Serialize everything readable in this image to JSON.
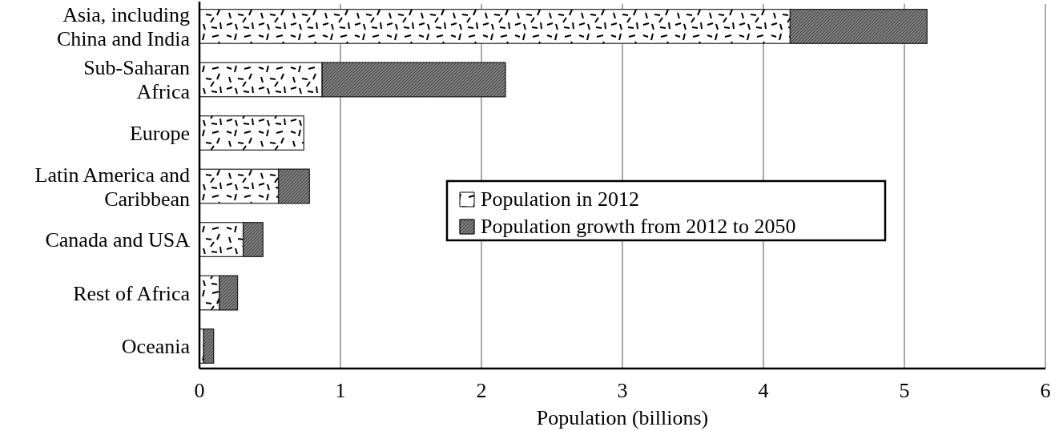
{
  "chart_data": {
    "type": "bar",
    "orientation": "horizontal",
    "stacked": true,
    "categories": [
      "Asia, including China and India",
      "Sub-Saharan Africa",
      "Europe",
      "Latin America and Caribbean",
      "Canada and USA",
      "Rest of Africa",
      "Oceania"
    ],
    "series": [
      {
        "name": "Population in 2012",
        "color": "#ffffff",
        "values": [
          4.19,
          0.87,
          0.74,
          0.56,
          0.31,
          0.14,
          0.03
        ]
      },
      {
        "name": "Population growth from 2012 to 2050",
        "color": "#808080",
        "values": [
          0.97,
          1.3,
          null,
          0.22,
          0.14,
          0.13,
          0.07
        ]
      }
    ],
    "xlabel": "Population (billions)",
    "xlim": [
      0,
      6
    ],
    "xticks": [
      0,
      1,
      2,
      3,
      4,
      5,
      6
    ],
    "grid": "x",
    "legend": "right"
  }
}
